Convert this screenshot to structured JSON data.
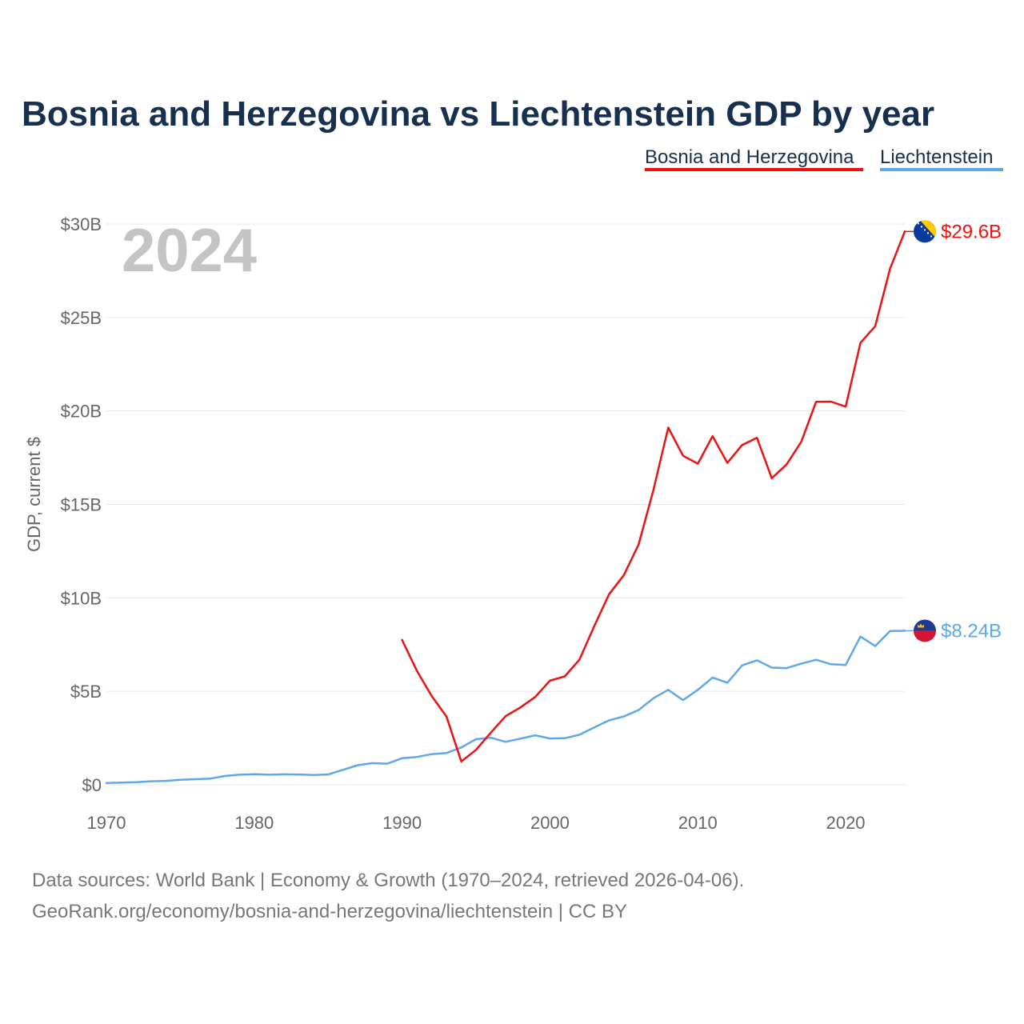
{
  "chart_data": {
    "type": "line",
    "title": "Bosnia and Herzegovina vs Liechtenstein GDP by year",
    "year_watermark": "2024",
    "ylabel": "GDP, current $",
    "xlabel": "",
    "xlim": [
      1970,
      2024
    ],
    "ylim": [
      0,
      30
    ],
    "x_ticks": [
      1970,
      1980,
      1990,
      2000,
      2010,
      2020
    ],
    "x_tick_labels": [
      "1970",
      "1980",
      "1990",
      "2000",
      "2010",
      "2020"
    ],
    "y_ticks": [
      0,
      5,
      10,
      15,
      20,
      25,
      30
    ],
    "y_tick_labels": [
      "$0",
      "$5B",
      "$10B",
      "$15B",
      "$20B",
      "$25B",
      "$30B"
    ],
    "unit": "billions USD",
    "series": [
      {
        "name": "Bosnia and Herzegovina",
        "color": "#ee1111",
        "end_label": "$29.6B",
        "flag_icon": "bosnia-flag-icon",
        "x": [
          1990,
          1991,
          1992,
          1993,
          1994,
          1995,
          1996,
          1997,
          1998,
          1999,
          2000,
          2001,
          2002,
          2003,
          2004,
          2005,
          2006,
          2007,
          2008,
          2009,
          2010,
          2011,
          2012,
          2013,
          2014,
          2015,
          2016,
          2017,
          2018,
          2019,
          2020,
          2021,
          2022,
          2023,
          2024
        ],
        "values": [
          7.75,
          6.1,
          4.75,
          3.65,
          1.25,
          1.87,
          2.79,
          3.67,
          4.14,
          4.7,
          5.57,
          5.8,
          6.7,
          8.5,
          10.2,
          11.22,
          12.86,
          15.78,
          19.11,
          17.6,
          17.18,
          18.65,
          17.22,
          18.18,
          18.56,
          16.4,
          17.13,
          18.35,
          20.49,
          20.5,
          20.23,
          23.65,
          24.53,
          27.6,
          29.6
        ]
      },
      {
        "name": "Liechtenstein",
        "color": "#5fa8e8",
        "end_label": "$8.24B",
        "flag_icon": "liechtenstein-flag-icon",
        "x": [
          1970,
          1971,
          1972,
          1973,
          1974,
          1975,
          1976,
          1977,
          1978,
          1979,
          1980,
          1981,
          1982,
          1983,
          1984,
          1985,
          1986,
          1987,
          1988,
          1989,
          1990,
          1991,
          1992,
          1993,
          1994,
          1995,
          1996,
          1997,
          1998,
          1999,
          2000,
          2001,
          2002,
          2003,
          2004,
          2005,
          2006,
          2007,
          2008,
          2009,
          2010,
          2011,
          2012,
          2013,
          2014,
          2015,
          2016,
          2017,
          2018,
          2019,
          2020,
          2021,
          2022,
          2023,
          2024
        ],
        "values": [
          0.1,
          0.12,
          0.14,
          0.19,
          0.21,
          0.27,
          0.3,
          0.33,
          0.47,
          0.54,
          0.57,
          0.54,
          0.56,
          0.55,
          0.52,
          0.55,
          0.8,
          1.05,
          1.16,
          1.13,
          1.42,
          1.49,
          1.64,
          1.7,
          2.0,
          2.44,
          2.52,
          2.3,
          2.47,
          2.65,
          2.48,
          2.49,
          2.68,
          3.07,
          3.45,
          3.66,
          4.0,
          4.63,
          5.08,
          4.53,
          5.08,
          5.74,
          5.46,
          6.39,
          6.66,
          6.27,
          6.24,
          6.48,
          6.69,
          6.45,
          6.41,
          7.93,
          7.42,
          8.23,
          8.24
        ]
      }
    ]
  },
  "footer": {
    "source_line": "Data sources: World Bank | Economy & Growth (1970–2024, retrieved 2026-04-06).",
    "url_line": "GeoRank.org/economy/bosnia-and-herzegovina/liechtenstein | CC BY"
  },
  "colors": {
    "title": "#17304f",
    "bosnia": "#ee1111",
    "liechtenstein": "#5fa8e8",
    "watermark": "#c4c4c4"
  }
}
